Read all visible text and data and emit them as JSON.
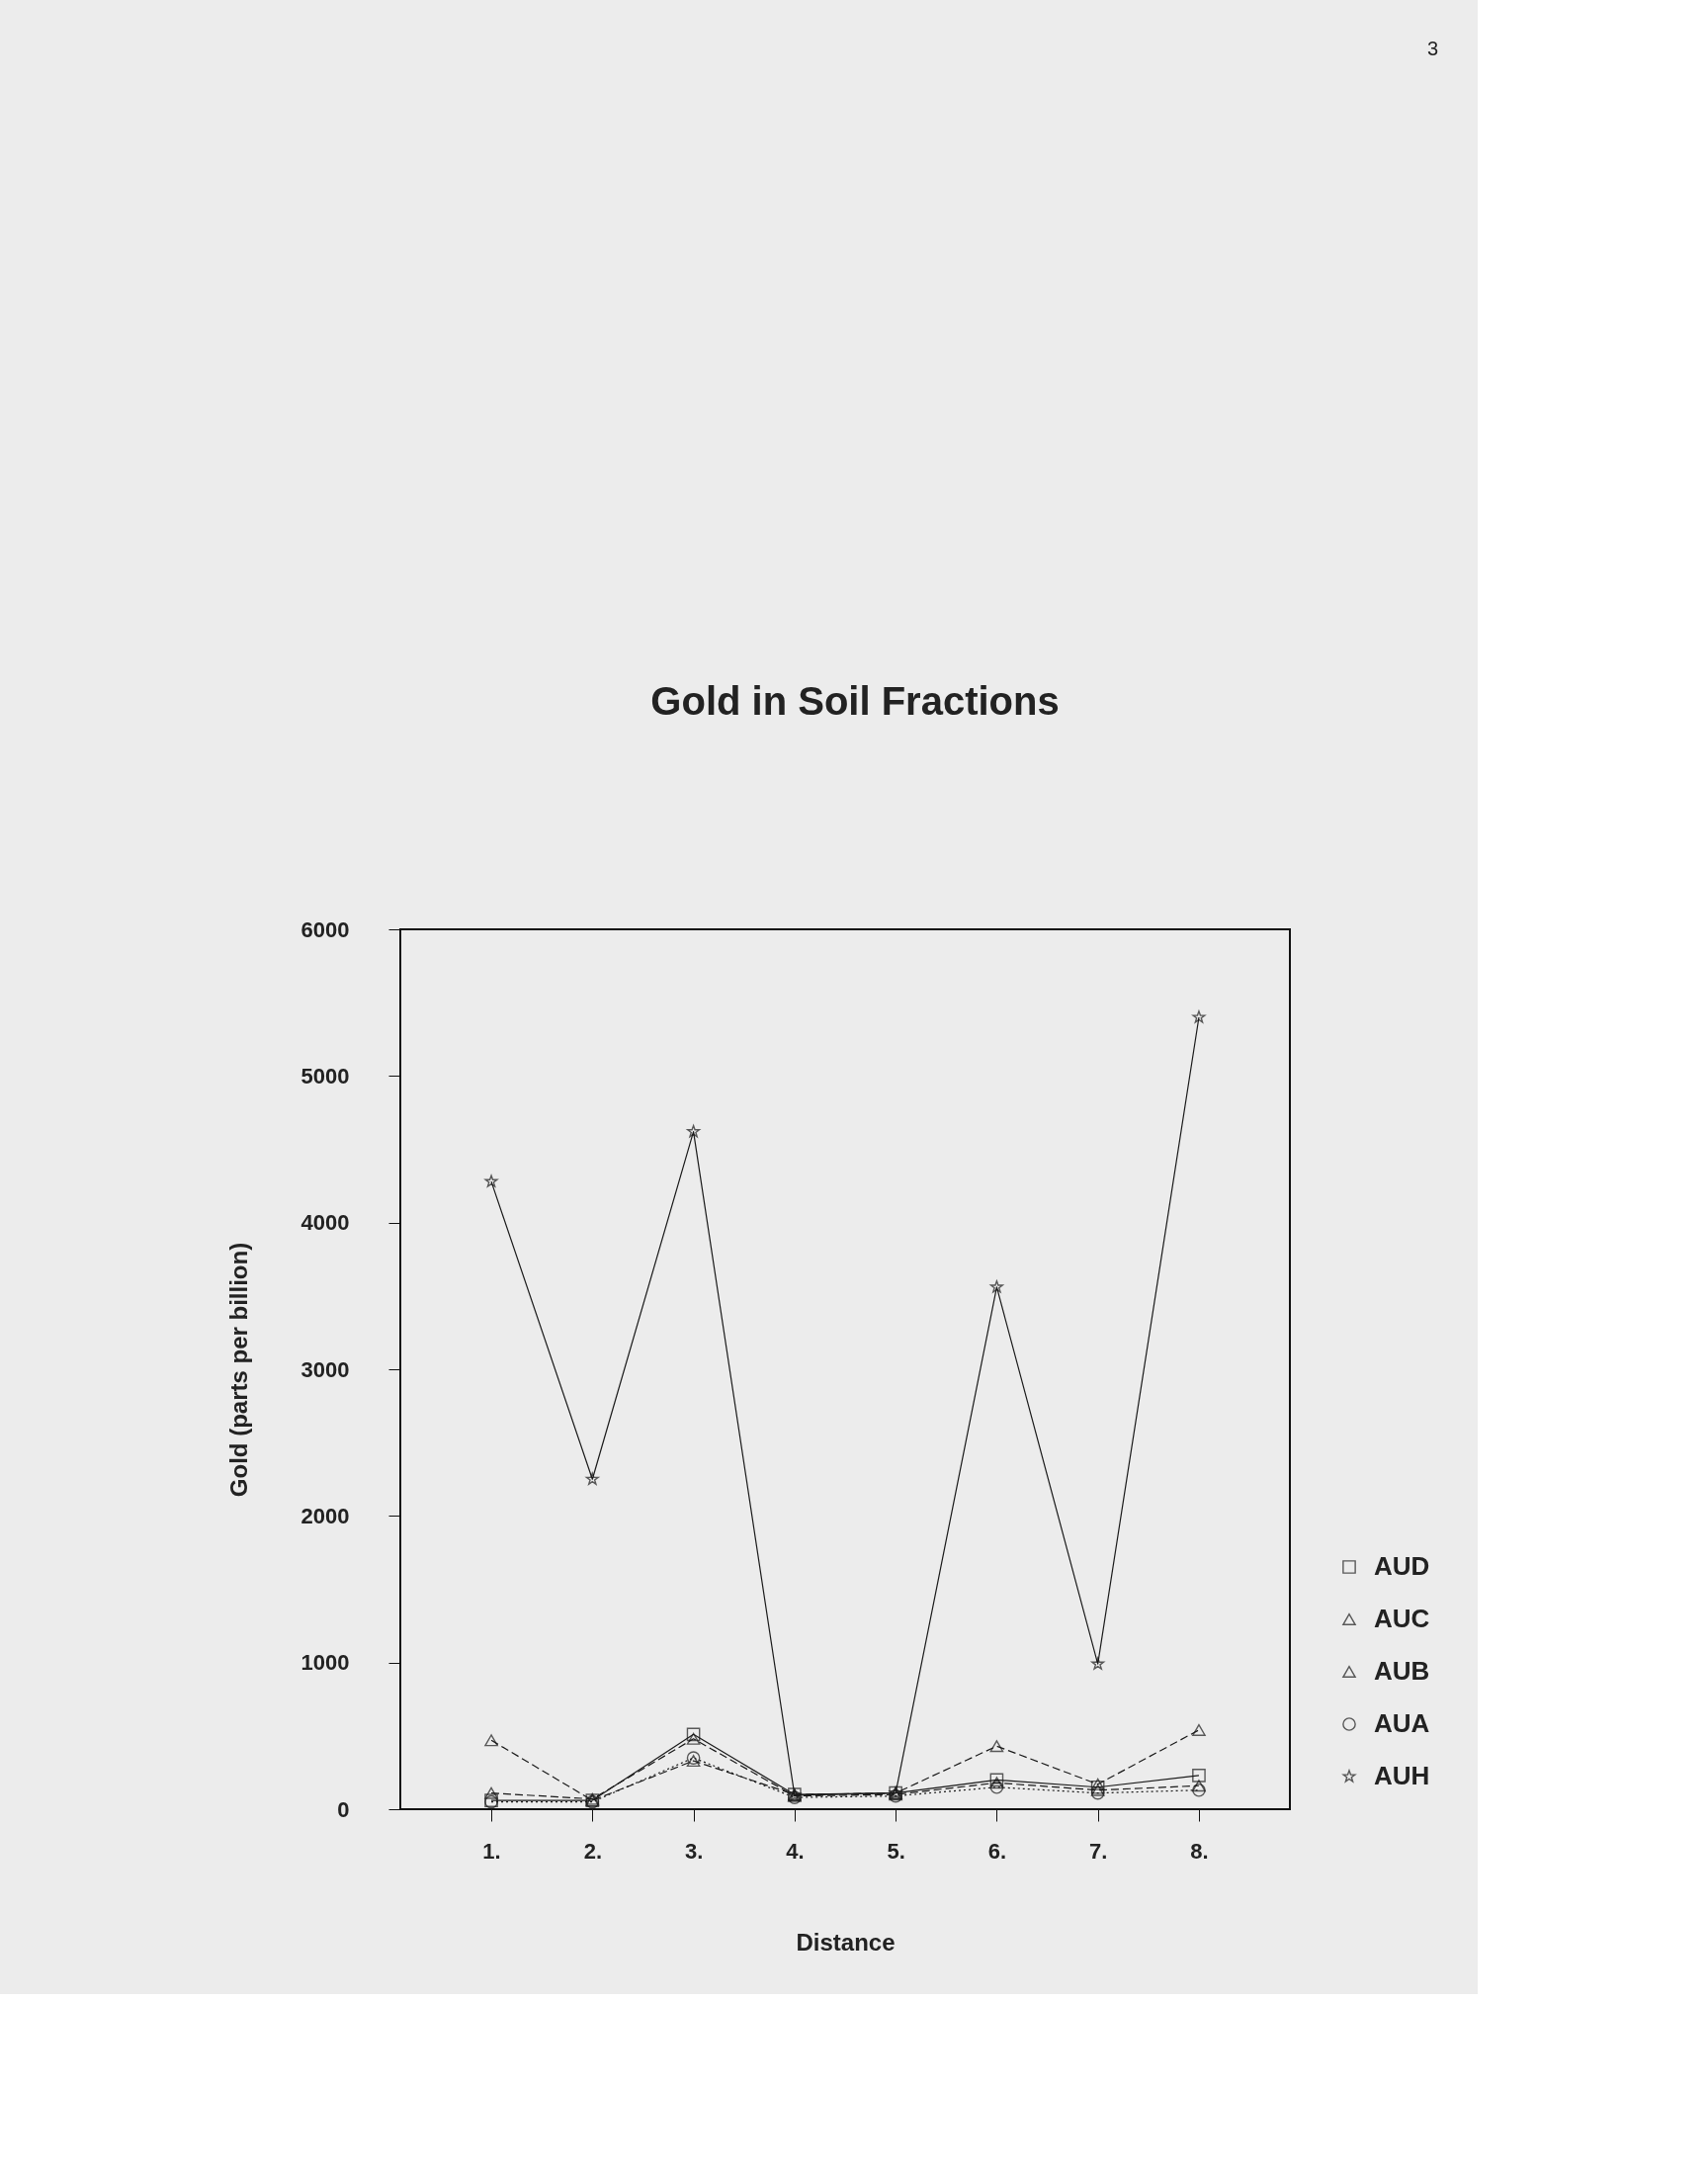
{
  "chart_data": {
    "type": "line",
    "title": "Gold in Soil Fractions",
    "xlabel": "Distance",
    "ylabel": "Gold (parts per billion)",
    "categories": [
      "1.",
      "2.",
      "3.",
      "4.",
      "5.",
      "6.",
      "7.",
      "8."
    ],
    "series": [
      {
        "name": "AUD",
        "color": "#1a1a1a",
        "marker": "square",
        "line_style": "solid",
        "values": [
          60,
          60,
          510,
          100,
          110,
          200,
          150,
          230
        ]
      },
      {
        "name": "AUC",
        "color": "#1a1a1a",
        "marker": "triangle",
        "line_style": "dashed",
        "values": [
          110,
          70,
          480,
          90,
          100,
          180,
          130,
          160
        ]
      },
      {
        "name": "AUB",
        "color": "#1a1a1a",
        "marker": "triangle",
        "line_style": "dashed",
        "values": [
          470,
          60,
          330,
          100,
          110,
          430,
          170,
          540
        ]
      },
      {
        "name": "AUA",
        "color": "#1a1a1a",
        "marker": "circle",
        "line_style": "dotted",
        "values": [
          50,
          50,
          350,
          80,
          90,
          150,
          110,
          130
        ]
      },
      {
        "name": "AUH",
        "color": "#1a1a1a",
        "marker": "star",
        "line_style": "solid",
        "values": [
          4280,
          2250,
          4620,
          95,
          110,
          3560,
          990,
          5400
        ]
      }
    ],
    "ylim": [
      0,
      6000
    ],
    "yticks": [
      0,
      1000,
      2000,
      3000,
      4000,
      5000,
      6000
    ],
    "grid": false,
    "legend": "right",
    "annotations": [
      "3"
    ]
  }
}
